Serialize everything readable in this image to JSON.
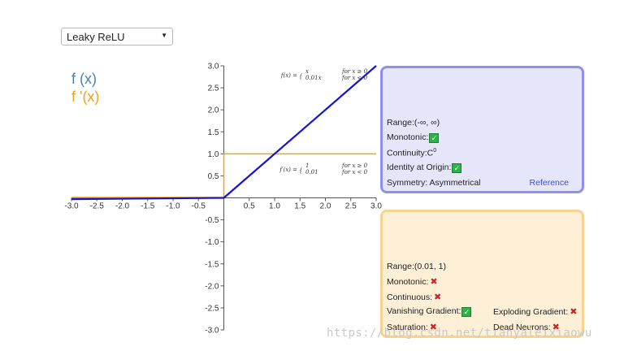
{
  "dropdown": {
    "selected": "Leaky ReLU"
  },
  "legend": {
    "f": "f (x)",
    "df": "f '(x)"
  },
  "chart_data": {
    "type": "line",
    "x_range": [
      -3.0,
      3.0
    ],
    "y_range": [
      -3.0,
      3.0
    ],
    "x_ticks": [
      "-3.0",
      "-2.5",
      "-2.0",
      "-1.5",
      "-1.0",
      "-0.5",
      "0.5",
      "1.0",
      "1.5",
      "2.0",
      "2.5",
      "3.0"
    ],
    "y_ticks": [
      "3.0",
      "2.5",
      "2.0",
      "1.5",
      "1.0",
      "0.5",
      "-0.5",
      "-1.0",
      "-1.5",
      "-2.0",
      "-2.5",
      "-3.0"
    ],
    "series": [
      {
        "name": "f (x)",
        "color": "#1414d2",
        "x": [
          -3.0,
          0.0,
          3.0
        ],
        "y": [
          -0.03,
          0.0,
          3.0
        ]
      },
      {
        "name": "f '(x)",
        "color": "#f0a21a",
        "x": [
          -3.0,
          0.0,
          0.0,
          3.0
        ],
        "y": [
          0.01,
          0.01,
          1.0,
          1.0
        ]
      }
    ],
    "formulas": {
      "f": {
        "lhs": "f(x) =",
        "cases": [
          {
            "expr": "x",
            "cond": "for x ≥ 0"
          },
          {
            "expr": "0.01x",
            "cond": "for x < 0"
          }
        ]
      },
      "df": {
        "lhs": "f′(x) =",
        "cases": [
          {
            "expr": "1",
            "cond": "for x ≥ 0"
          },
          {
            "expr": "0.01",
            "cond": "for x < 0"
          }
        ]
      }
    }
  },
  "panel_f": {
    "range": "Range:(-∞, ∞)",
    "monotonic": "Monotonic:",
    "continuity": "Continuity:C",
    "continuity_sup": "0",
    "identity": "Identity at Origin:",
    "symmetry": "Symmetry: Asymmetrical",
    "reference": "Reference"
  },
  "panel_d": {
    "range": "Range:(0.01, 1)",
    "monotonic": "Monotonic:",
    "continuous": "Continuous:",
    "vanishing": "Vanishing Gradient:",
    "exploding": "Exploding Gradient:",
    "saturation": "Saturation:",
    "dead": "Dead Neurons:"
  },
  "icons": {
    "check": "✓",
    "cross": "✖"
  },
  "watermark": "https://blog.csdn.net/tianyaleixiaowu"
}
